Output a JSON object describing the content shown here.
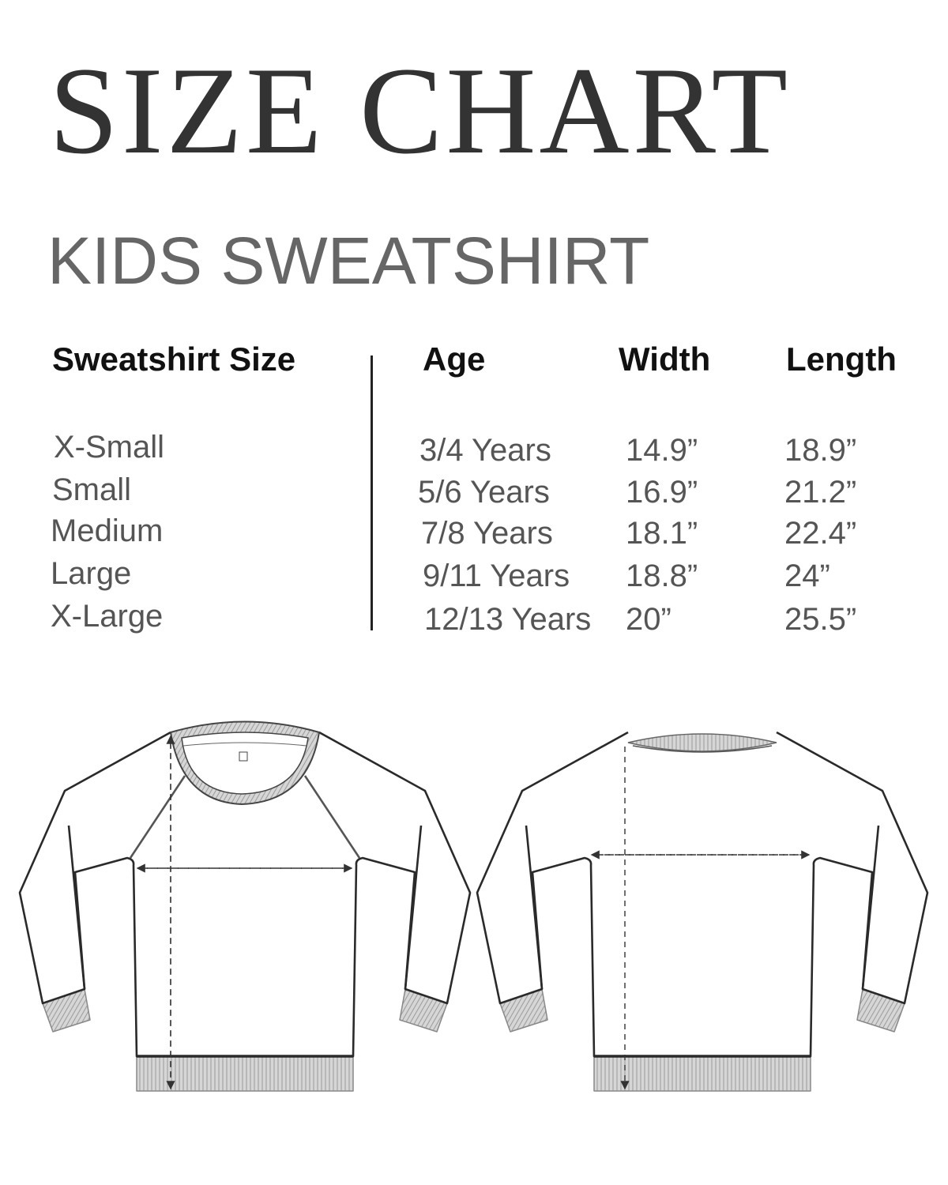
{
  "title": "SIZE CHART",
  "subtitle": "KIDS SWEATSHIRT",
  "table": {
    "headers": [
      "Sweatshirt Size",
      "Age",
      "Width",
      "Length"
    ],
    "rows": [
      {
        "size": "X-Small",
        "age": "3/4 Years",
        "width": "14.9”",
        "length": "18.9”"
      },
      {
        "size": "Small",
        "age": "5/6 Years",
        "width": "16.9”",
        "length": "21.2”"
      },
      {
        "size": "Medium",
        "age": "7/8 Years",
        "width": "18.1”",
        "length": "22.4”"
      },
      {
        "size": "Large",
        "age": "9/11 Years",
        "width": "18.8”",
        "length": "24”"
      },
      {
        "size": "X-Large",
        "age": "12/13 Years",
        "width": "20”",
        "length": "25.5”"
      }
    ]
  },
  "diagrams": {
    "front": "sweatshirt-front-icon",
    "back": "sweatshirt-back-icon",
    "rib_color": "#c8c8c8",
    "outline_color": "#2a2a2a"
  }
}
